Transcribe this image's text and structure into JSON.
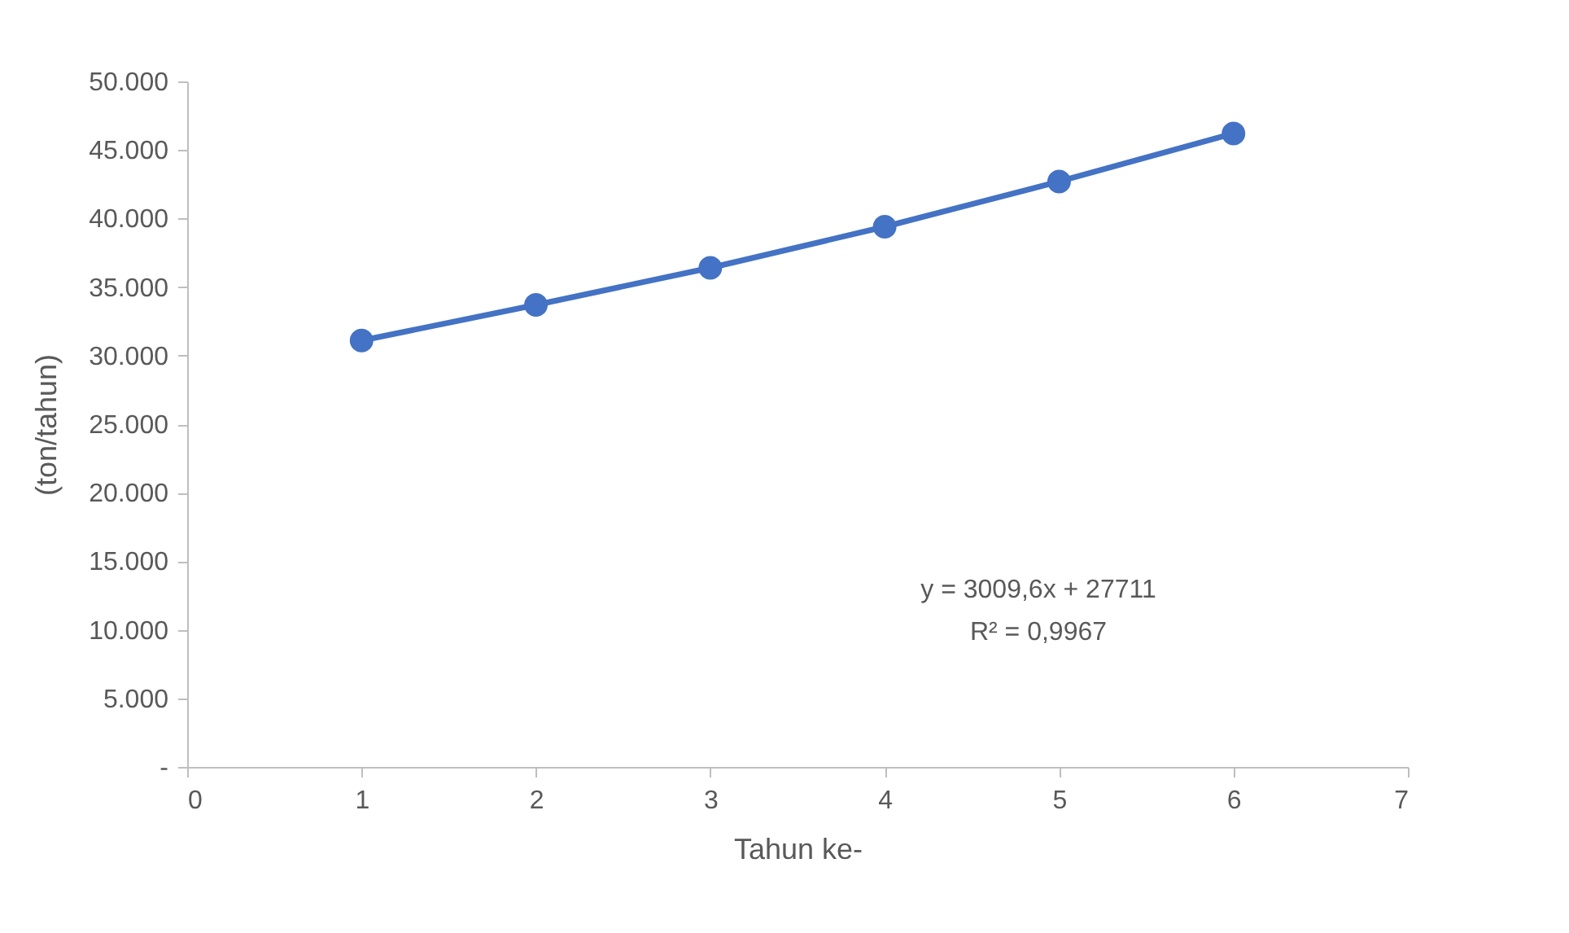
{
  "chart_data": {
    "type": "line",
    "xlabel": "Tahun ke-",
    "ylabel": "(ton/tahun)",
    "x": [
      1,
      2,
      3,
      4,
      5,
      6
    ],
    "series": [
      {
        "color": "#4472c4",
        "values": [
          31100,
          33700,
          36400,
          39400,
          42700,
          46200
        ]
      }
    ],
    "xlim": [
      0,
      7
    ],
    "xticks": [
      0,
      1,
      2,
      3,
      4,
      5,
      6,
      7
    ],
    "ylim": [
      0,
      50000
    ],
    "yticks": [
      {
        "value": 0,
        "label": "-"
      },
      {
        "value": 5000,
        "label": "5.000"
      },
      {
        "value": 10000,
        "label": "10.000"
      },
      {
        "value": 15000,
        "label": "15.000"
      },
      {
        "value": 20000,
        "label": "20.000"
      },
      {
        "value": 25000,
        "label": "25.000"
      },
      {
        "value": 30000,
        "label": "30.000"
      },
      {
        "value": 35000,
        "label": "35.000"
      },
      {
        "value": 40000,
        "label": "40.000"
      },
      {
        "value": 45000,
        "label": "45.000"
      },
      {
        "value": 50000,
        "label": "50.000"
      }
    ],
    "annotations": [
      "y = 3009,6x + 27711",
      "R² = 0,9967"
    ],
    "marker": "circle",
    "line_style": "solid",
    "grid": false,
    "legend": false
  }
}
